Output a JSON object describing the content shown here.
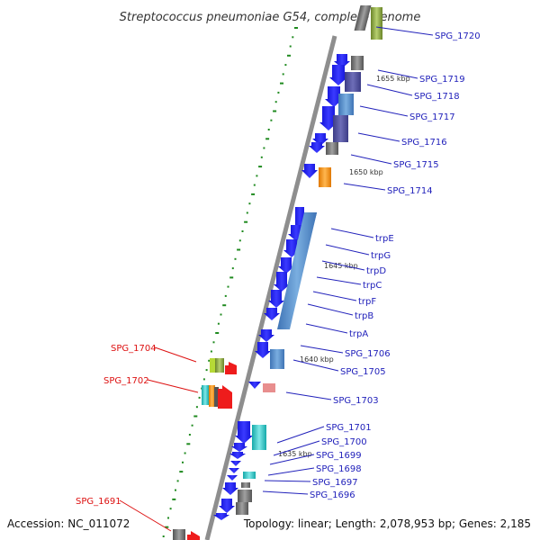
{
  "title": "Streptococcus pneumoniae G54, complete genome",
  "accession": "Accession: NC_011072",
  "summary": "Topology: linear; Length: 2,078,953 bp; Genes: 2,185",
  "colors": {
    "backbone": "#9a9a9a",
    "tick": "#1f8a1f",
    "gene_dark": "#1010e6",
    "right_label": "#2222bb",
    "left_label": "#dd1111",
    "steel": "#5b8fc9",
    "slate": "#50509a",
    "orange": "#f7941d",
    "cyan": "#2cc4c4",
    "grey": "#777777",
    "olive": "#7e9a32",
    "pink": "#e88e8e",
    "red": "#ee1c1c",
    "lime": "#b6d936"
  },
  "scale_labels": [
    "1655 kbp",
    "1650 kbp",
    "1645 kbp",
    "1640 kbp",
    "1635 kbp"
  ],
  "labels_right": [
    "SPG_1720",
    "SPG_1719",
    "SPG_1718",
    "SPG_1717",
    "SPG_1716",
    "SPG_1715",
    "SPG_1714",
    "trpE",
    "trpG",
    "trpD",
    "trpC",
    "trpF",
    "trpB",
    "trpA",
    "SPG_1706",
    "SPG_1705",
    "SPG_1703",
    "SPG_1701",
    "SPG_1700",
    "SPG_1699",
    "SPG_1698",
    "SPG_1697",
    "SPG_1696"
  ],
  "labels_left": [
    "SPG_1704",
    "SPG_1702",
    "SPG_1691"
  ]
}
